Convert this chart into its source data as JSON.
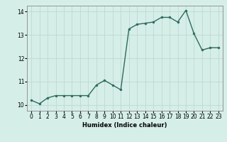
{
  "x": [
    0,
    1,
    2,
    3,
    4,
    5,
    6,
    7,
    8,
    9,
    10,
    11,
    12,
    13,
    14,
    15,
    16,
    17,
    18,
    19,
    20,
    21,
    22,
    23
  ],
  "y": [
    10.2,
    10.05,
    10.3,
    10.4,
    10.4,
    10.4,
    10.4,
    10.4,
    10.85,
    11.05,
    10.85,
    10.65,
    13.25,
    13.45,
    13.5,
    13.55,
    13.75,
    13.75,
    13.55,
    14.05,
    13.05,
    12.35,
    12.45,
    12.45
  ],
  "line_color": "#2e6b5e",
  "marker": "o",
  "markersize": 2.0,
  "linewidth": 1.0,
  "xlabel": "Humidex (Indice chaleur)",
  "xlim": [
    -0.5,
    23.5
  ],
  "ylim": [
    9.75,
    14.25
  ],
  "yticks": [
    10,
    11,
    12,
    13,
    14
  ],
  "xticks": [
    0,
    1,
    2,
    3,
    4,
    5,
    6,
    7,
    8,
    9,
    10,
    11,
    12,
    13,
    14,
    15,
    16,
    17,
    18,
    19,
    20,
    21,
    22,
    23
  ],
  "xtick_labels": [
    "0",
    "1",
    "2",
    "3",
    "4",
    "5",
    "6",
    "7",
    "8",
    "9",
    "10",
    "11",
    "12",
    "13",
    "14",
    "15",
    "16",
    "17",
    "18",
    "19",
    "20",
    "21",
    "22",
    "23"
  ],
  "bg_color": "#d6eee8",
  "grid_color": "#c0d8d2",
  "xlabel_fontsize": 6.0,
  "tick_fontsize": 5.5
}
